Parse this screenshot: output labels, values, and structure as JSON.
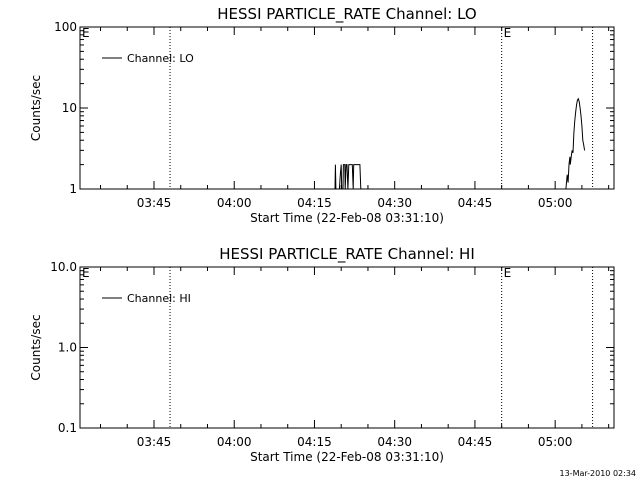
{
  "footer_timestamp": "13-Mar-2010 02:34",
  "chart_data": [
    {
      "type": "line",
      "title": "HESSI PARTICLE_RATE Channel: LO",
      "xlabel": "Start Time (22-Feb-08 03:31:10)",
      "ylabel": "Counts/sec",
      "yscale": "log",
      "ylim": [
        1,
        100
      ],
      "yticks": [
        1,
        10,
        100
      ],
      "ytick_labels": [
        "1",
        "10",
        "100"
      ],
      "xlim": [
        "03:31:10",
        "05:11:00"
      ],
      "xticks": [
        "03:45",
        "04:00",
        "04:15",
        "04:30",
        "04:45",
        "05:00"
      ],
      "legend": {
        "label": "Channel: LO",
        "placement": "top-left"
      },
      "orbit_markers": [
        {
          "time": "03:31:10",
          "label": "E"
        },
        {
          "time": "03:48:00",
          "label": ""
        },
        {
          "time": "04:50:00",
          "label": "E"
        },
        {
          "time": "05:07:00",
          "label": ""
        }
      ],
      "series": [
        {
          "x": [
            "04:18:40",
            "04:18:50",
            "04:18:55",
            "04:19:00",
            "04:19:40",
            "04:19:50",
            "04:20:00",
            "04:20:05",
            "04:20:20",
            "04:20:25",
            "04:20:40",
            "04:20:45",
            "04:20:55",
            "04:21:05",
            "04:21:15",
            "04:21:25",
            "04:21:40",
            "04:21:55",
            "04:22:05",
            "04:22:15",
            "04:22:20",
            "04:22:30",
            "04:22:40",
            "04:23:00",
            "04:23:20",
            "04:23:30",
            "04:23:40",
            "04:23:45",
            "05:02:00",
            "05:02:15",
            "05:02:25",
            "05:02:35",
            "05:02:45",
            "05:02:50",
            "05:03:00",
            "05:03:10",
            "05:03:20",
            "05:03:30",
            "05:03:40",
            "05:03:50",
            "05:04:00",
            "05:04:10",
            "05:04:20",
            "05:04:30",
            "05:04:40",
            "05:04:50",
            "05:05:00",
            "05:05:10",
            "05:05:20",
            "05:05:30"
          ],
          "y": [
            1,
            1,
            2,
            1,
            1,
            1.5,
            2,
            1,
            1,
            2,
            2,
            1,
            2,
            2,
            1,
            2,
            2,
            2,
            2,
            1,
            2,
            2,
            2,
            2,
            2,
            2,
            1,
            1,
            1,
            1.5,
            1.2,
            2,
            2.5,
            2,
            2.5,
            3,
            2.8,
            5,
            7,
            9,
            11,
            12.5,
            13,
            12,
            10,
            8,
            6,
            4,
            3.5,
            3
          ]
        }
      ]
    },
    {
      "type": "line",
      "title": "HESSI PARTICLE_RATE Channel: HI",
      "xlabel": "Start Time (22-Feb-08 03:31:10)",
      "ylabel": "Counts/sec",
      "yscale": "log",
      "ylim": [
        0.1,
        10
      ],
      "yticks": [
        0.1,
        1,
        10
      ],
      "ytick_labels": [
        "0.1",
        "1.0",
        "10.0"
      ],
      "xlim": [
        "03:31:10",
        "05:11:00"
      ],
      "xticks": [
        "03:45",
        "04:00",
        "04:15",
        "04:30",
        "04:45",
        "05:00"
      ],
      "legend": {
        "label": "Channel: HI",
        "placement": "top-left"
      },
      "orbit_markers": [
        {
          "time": "03:31:10",
          "label": "E"
        },
        {
          "time": "03:48:00",
          "label": ""
        },
        {
          "time": "04:50:00",
          "label": "E"
        },
        {
          "time": "05:07:00",
          "label": ""
        }
      ],
      "series": [
        {
          "x": [],
          "y": []
        }
      ]
    }
  ]
}
